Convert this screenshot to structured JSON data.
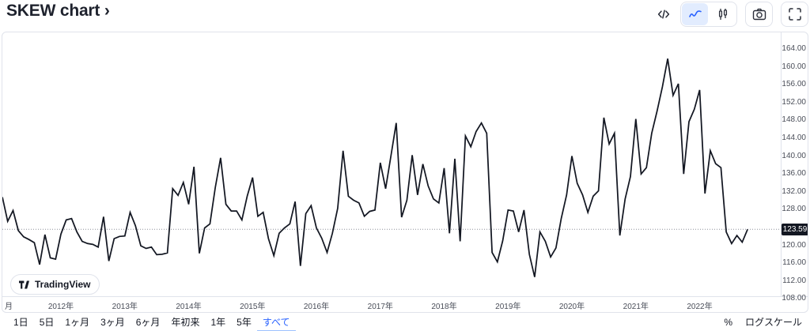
{
  "header": {
    "title": "SKEW chart ›",
    "icons": [
      "embed-code-icon",
      "line-style-icon",
      "candlestick-style-icon",
      "camera-icon",
      "fullscreen-icon"
    ]
  },
  "chart_data": {
    "type": "line",
    "title": "SKEW",
    "x_frequency": "monthly",
    "x_first_point": "2011",
    "x_last_point": "2022",
    "values": [
      130.8,
      125.4,
      127.8,
      123.3,
      121.9,
      121.3,
      120.6,
      115.7,
      122.4,
      117.2,
      116.9,
      122.5,
      125.7,
      126.0,
      123.0,
      120.9,
      120.4,
      120.2,
      119.6,
      126.4,
      116.5,
      121.5,
      122.0,
      122.1,
      127.4,
      124.4,
      119.9,
      119.3,
      119.6,
      117.9,
      118.0,
      118.3,
      132.7,
      131.2,
      134.1,
      129.2,
      137.6,
      118.2,
      123.9,
      124.8,
      133.0,
      139.6,
      129.2,
      127.7,
      127.7,
      125.7,
      131.0,
      135.2,
      126.5,
      127.4,
      121.5,
      117.7,
      122.7,
      123.9,
      124.8,
      129.8,
      115.4,
      127.1,
      128.9,
      123.9,
      121.6,
      118.4,
      122.7,
      128.3,
      141.2,
      131.0,
      130.1,
      129.5,
      126.5,
      127.6,
      127.9,
      138.5,
      132.7,
      140.0,
      147.4,
      126.3,
      130.1,
      140.2,
      131.3,
      138.2,
      133.3,
      130.4,
      129.5,
      137.3,
      122.7,
      139.4,
      120.9,
      144.5,
      142.1,
      145.5,
      147.4,
      145.1,
      118.4,
      116.3,
      121.0,
      127.9,
      127.7,
      123.0,
      127.9,
      118.0,
      112.9,
      123.0,
      120.9,
      117.4,
      119.4,
      126.0,
      131.3,
      140.0,
      133.9,
      131.3,
      127.4,
      131.0,
      132.2,
      148.6,
      142.7,
      145.1,
      122.2,
      130.4,
      135.4,
      148.3,
      136.0,
      137.4,
      145.1,
      150.1,
      155.5,
      161.8,
      153.6,
      156.2,
      136.0,
      147.7,
      150.5,
      154.8,
      131.6,
      141.2,
      138.3,
      137.4,
      123.0,
      120.4,
      122.2,
      120.7,
      123.59
    ],
    "last_price": "123.59",
    "x_ticks": [
      {
        "label": "月",
        "index": 0.45,
        "align": "left"
      },
      {
        "label": "2012年",
        "index": 11
      },
      {
        "label": "2013年",
        "index": 23
      },
      {
        "label": "2014年",
        "index": 35
      },
      {
        "label": "2015年",
        "index": 47
      },
      {
        "label": "2016年",
        "index": 59
      },
      {
        "label": "2017年",
        "index": 71
      },
      {
        "label": "2018年",
        "index": 83
      },
      {
        "label": "2019年",
        "index": 95
      },
      {
        "label": "2020年",
        "index": 107
      },
      {
        "label": "2021年",
        "index": 119
      },
      {
        "label": "2022年",
        "index": 131
      }
    ],
    "y_ticks": [
      "164.00",
      "160.00",
      "156.00",
      "152.00",
      "148.00",
      "144.00",
      "140.00",
      "136.00",
      "132.00",
      "128.00",
      "124.00",
      "120.00",
      "116.00",
      "112.00",
      "108.00"
    ],
    "ylim": [
      108.6,
      167.7
    ],
    "grid": "off",
    "last_price_line": "dotted",
    "line_color": "#131722",
    "last_price_bg": "#131722",
    "accent_color": "#2962ff",
    "border_color": "#e0e3eb"
  },
  "attribution": {
    "label": "TradingView"
  },
  "range_buttons": [
    {
      "label": "1日",
      "selected": false
    },
    {
      "label": "5日",
      "selected": false
    },
    {
      "label": "1ヶ月",
      "selected": false
    },
    {
      "label": "3ヶ月",
      "selected": false
    },
    {
      "label": "6ヶ月",
      "selected": false
    },
    {
      "label": "年初来",
      "selected": false
    },
    {
      "label": "1年",
      "selected": false
    },
    {
      "label": "5年",
      "selected": false
    },
    {
      "label": "すべて",
      "selected": true
    }
  ],
  "scale_controls": {
    "percent_label": "%",
    "log_label": "ログスケール"
  }
}
